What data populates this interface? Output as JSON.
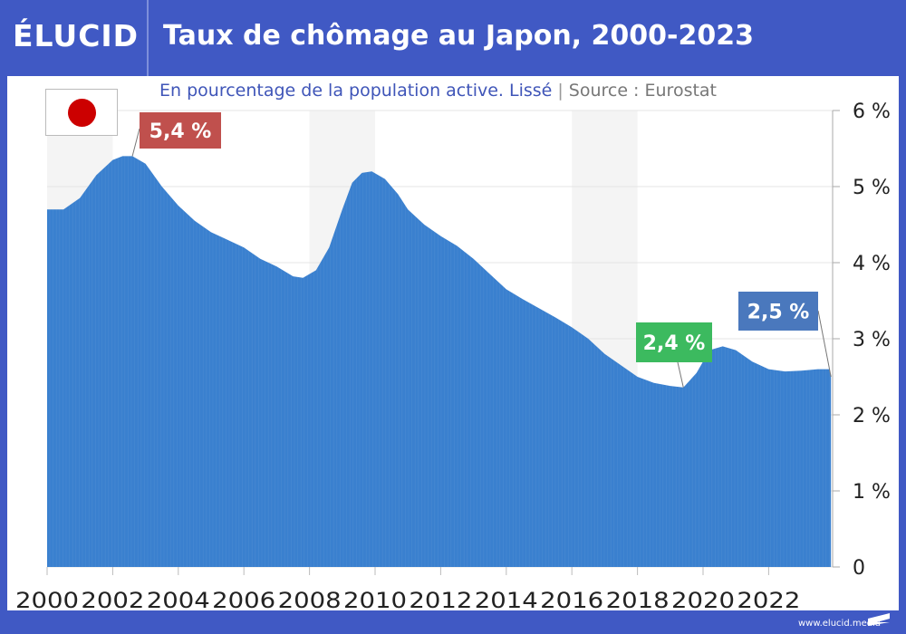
{
  "header": {
    "logo": "ÉLUCID",
    "title": "Taux de chômage au Japon, 2000-2023"
  },
  "subtitle": {
    "description": "En pourcentage de la population active. Lissé",
    "separator": "|",
    "source": "Source : Eurostat"
  },
  "flag": {
    "country": "Japan",
    "icon": "japan-flag-icon"
  },
  "footer": {
    "url": "www.elucid.media"
  },
  "colors": {
    "brand": "#4059c4",
    "area": "#3a80cf",
    "peak_label": "#c0504d",
    "min_label": "#3cba5f",
    "last_label": "#4a78bd",
    "band": "#f4f4f4"
  },
  "chart_data": {
    "type": "area",
    "title": "Taux de chômage au Japon, 2000-2023",
    "subtitle": "En pourcentage de la population active. Lissé | Source : Eurostat",
    "xlabel": "",
    "ylabel": "",
    "xlim": [
      2000,
      2024
    ],
    "ylim": [
      0,
      6
    ],
    "grid": true,
    "y_axis_position": "right",
    "x_ticks": [
      "2000",
      "2002",
      "2004",
      "2006",
      "2008",
      "2010",
      "2012",
      "2014",
      "2016",
      "2018",
      "2020",
      "2022"
    ],
    "x_tick_values": [
      2000,
      2002,
      2004,
      2006,
      2008,
      2010,
      2012,
      2014,
      2016,
      2018,
      2020,
      2022
    ],
    "y_ticks": [
      "0",
      "1 %",
      "2 %",
      "3 %",
      "4 %",
      "5 %",
      "6 %"
    ],
    "y_tick_values": [
      0,
      1,
      2,
      3,
      4,
      5,
      6
    ],
    "shaded_bands": [
      [
        2000,
        2002
      ],
      [
        2008,
        2010
      ],
      [
        2016,
        2018
      ]
    ],
    "series": [
      {
        "name": "Taux de chômage (%)",
        "x": [
          2000.0,
          2000.5,
          2001.0,
          2001.5,
          2002.0,
          2002.3,
          2002.6,
          2003.0,
          2003.5,
          2004.0,
          2004.5,
          2005.0,
          2005.5,
          2006.0,
          2006.5,
          2007.0,
          2007.5,
          2007.8,
          2008.2,
          2008.6,
          2009.0,
          2009.3,
          2009.6,
          2009.9,
          2010.3,
          2010.7,
          2011.0,
          2011.5,
          2012.0,
          2012.5,
          2013.0,
          2013.5,
          2014.0,
          2014.5,
          2015.0,
          2015.5,
          2016.0,
          2016.5,
          2017.0,
          2017.5,
          2018.0,
          2018.5,
          2019.0,
          2019.4,
          2019.8,
          2020.2,
          2020.6,
          2021.0,
          2021.5,
          2022.0,
          2022.5,
          2023.0,
          2023.5,
          2023.85,
          2023.9
        ],
        "values": [
          4.7,
          4.7,
          4.85,
          5.15,
          5.35,
          5.4,
          5.4,
          5.3,
          5.0,
          4.75,
          4.55,
          4.4,
          4.3,
          4.2,
          4.05,
          3.95,
          3.82,
          3.8,
          3.9,
          4.2,
          4.7,
          5.05,
          5.18,
          5.2,
          5.1,
          4.9,
          4.7,
          4.5,
          4.35,
          4.22,
          4.05,
          3.85,
          3.65,
          3.52,
          3.4,
          3.28,
          3.15,
          3.0,
          2.8,
          2.65,
          2.5,
          2.42,
          2.38,
          2.36,
          2.55,
          2.85,
          2.9,
          2.85,
          2.7,
          2.6,
          2.57,
          2.58,
          2.6,
          2.6,
          2.5
        ]
      }
    ],
    "annotations": [
      {
        "label": "5,4 %",
        "x": 2002.6,
        "y": 5.4,
        "kind": "max"
      },
      {
        "label": "2,4 %",
        "x": 2019.4,
        "y": 2.36,
        "kind": "min"
      },
      {
        "label": "2,5 %",
        "x": 2023.9,
        "y": 2.5,
        "kind": "last"
      }
    ]
  }
}
